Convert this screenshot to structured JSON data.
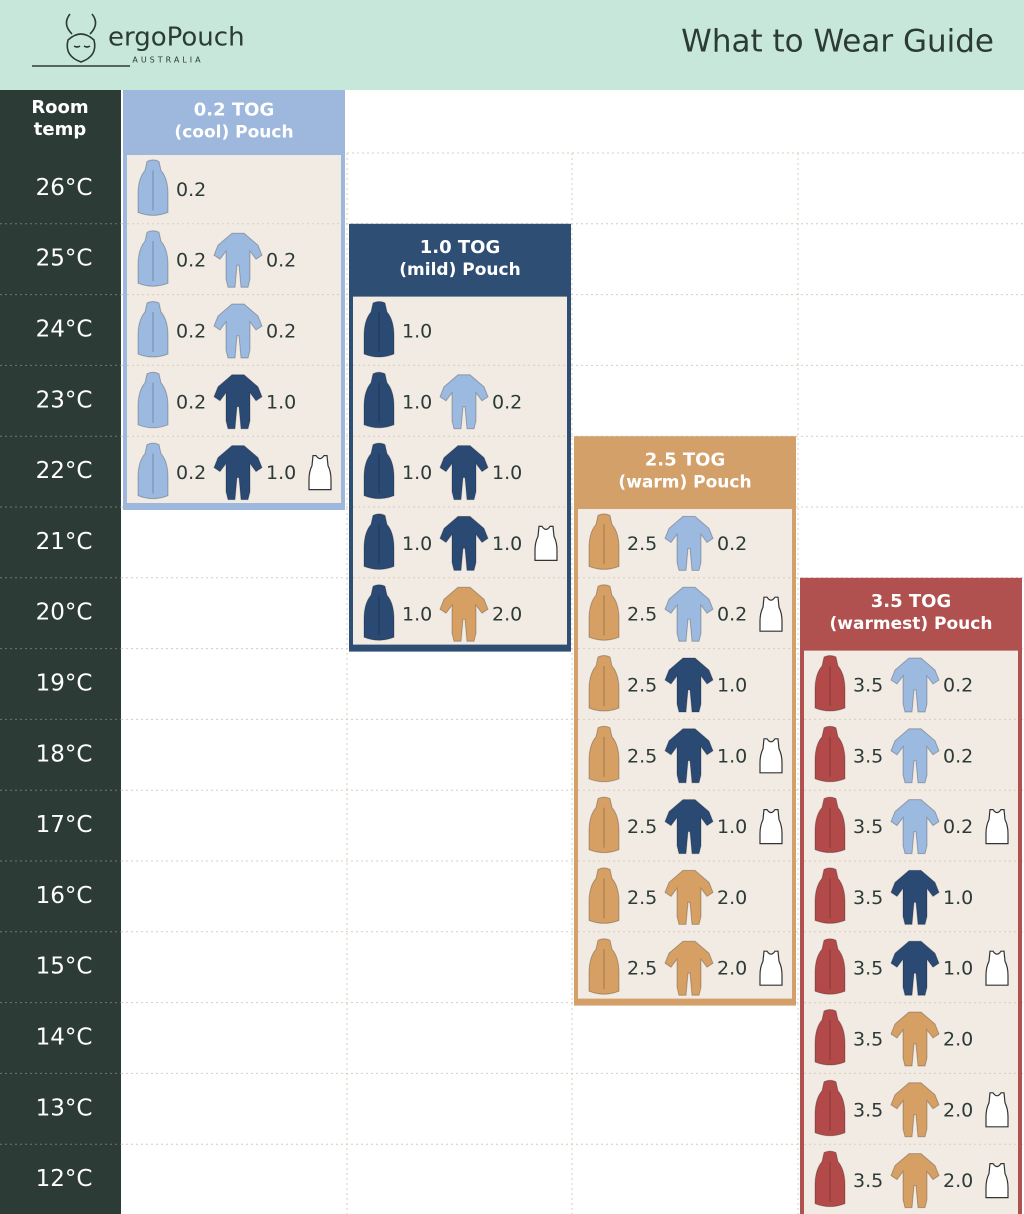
{
  "header": {
    "brand": "ergoPouch",
    "country": "AUSTRALIA",
    "title": "What to Wear Guide"
  },
  "room_temp_label": [
    "Room",
    "temp"
  ],
  "columns": [
    {
      "title": "0.2 TOG",
      "subtitle": "(cool) Pouch",
      "color": "#9db8dc",
      "pouch_color": "#9cb9e0"
    },
    {
      "title": "1.0 TOG",
      "subtitle": "(mild) Pouch",
      "color": "#2f4e73",
      "pouch_color": "#2a4a74"
    },
    {
      "title": "2.5 TOG",
      "subtitle": "(warm) Pouch",
      "color": "#d4a06a",
      "pouch_color": "#d6a064"
    },
    {
      "title": "3.5 TOG",
      "subtitle": "(warmest) Pouch",
      "color": "#b0504f",
      "pouch_color": "#b24a4a"
    }
  ],
  "rows": [
    {
      "temp": "26°C",
      "cells": [
        {
          "pouch": "0.2"
        },
        null,
        null,
        null
      ]
    },
    {
      "temp": "25°C",
      "cells": [
        {
          "pouch": "0.2",
          "garment": "0.2",
          "garment_color": "#9cb9e0"
        },
        null,
        null,
        null
      ]
    },
    {
      "temp": "24°C",
      "cells": [
        {
          "pouch": "0.2",
          "garment": "0.2",
          "garment_color": "#9cb9e0"
        },
        {
          "pouch": "1.0"
        },
        null,
        null
      ]
    },
    {
      "temp": "23°C",
      "cells": [
        {
          "pouch": "0.2",
          "garment": "1.0",
          "garment_color": "#2a4a74"
        },
        {
          "pouch": "1.0",
          "garment": "0.2",
          "garment_color": "#9cb9e0"
        },
        null,
        null
      ]
    },
    {
      "temp": "22°C",
      "cells": [
        {
          "pouch": "0.2",
          "garment": "1.0",
          "garment_color": "#2a4a74",
          "singlet": true
        },
        {
          "pouch": "1.0",
          "garment": "1.0",
          "garment_color": "#2a4a74"
        },
        null,
        null
      ]
    },
    {
      "temp": "21°C",
      "cells": [
        null,
        {
          "pouch": "1.0",
          "garment": "1.0",
          "garment_color": "#2a4a74",
          "singlet": true
        },
        {
          "pouch": "2.5",
          "garment": "0.2",
          "garment_color": "#9cb9e0"
        },
        null
      ]
    },
    {
      "temp": "20°C",
      "cells": [
        null,
        {
          "pouch": "1.0",
          "garment": "2.0",
          "garment_color": "#d6a064"
        },
        {
          "pouch": "2.5",
          "garment": "0.2",
          "garment_color": "#9cb9e0",
          "singlet": true
        },
        null
      ]
    },
    {
      "temp": "19°C",
      "cells": [
        null,
        null,
        {
          "pouch": "2.5",
          "garment": "1.0",
          "garment_color": "#2a4a74"
        },
        {
          "pouch": "3.5",
          "garment": "0.2",
          "garment_color": "#9cb9e0"
        }
      ]
    },
    {
      "temp": "18°C",
      "cells": [
        null,
        null,
        {
          "pouch": "2.5",
          "garment": "1.0",
          "garment_color": "#2a4a74",
          "singlet": true
        },
        {
          "pouch": "3.5",
          "garment": "0.2",
          "garment_color": "#9cb9e0"
        }
      ]
    },
    {
      "temp": "17°C",
      "cells": [
        null,
        null,
        {
          "pouch": "2.5",
          "garment": "1.0",
          "garment_color": "#2a4a74",
          "singlet": true
        },
        {
          "pouch": "3.5",
          "garment": "0.2",
          "garment_color": "#9cb9e0",
          "singlet": true
        }
      ]
    },
    {
      "temp": "16°C",
      "cells": [
        null,
        null,
        {
          "pouch": "2.5",
          "garment": "2.0",
          "garment_color": "#d6a064"
        },
        {
          "pouch": "3.5",
          "garment": "1.0",
          "garment_color": "#2a4a74"
        }
      ]
    },
    {
      "temp": "15°C",
      "cells": [
        null,
        null,
        {
          "pouch": "2.5",
          "garment": "2.0",
          "garment_color": "#d6a064",
          "singlet": true
        },
        {
          "pouch": "3.5",
          "garment": "1.0",
          "garment_color": "#2a4a74",
          "singlet": true
        }
      ]
    },
    {
      "temp": "14°C",
      "cells": [
        null,
        null,
        null,
        {
          "pouch": "3.5",
          "garment": "2.0",
          "garment_color": "#d6a064"
        }
      ]
    },
    {
      "temp": "13°C",
      "cells": [
        null,
        null,
        null,
        {
          "pouch": "3.5",
          "garment": "2.0",
          "garment_color": "#d6a064",
          "singlet": true
        }
      ]
    },
    {
      "temp": "12°C",
      "cells": [
        null,
        null,
        null,
        {
          "pouch": "3.5",
          "garment": "2.0",
          "garment_color": "#d6a064",
          "singlet": true
        }
      ]
    }
  ]
}
